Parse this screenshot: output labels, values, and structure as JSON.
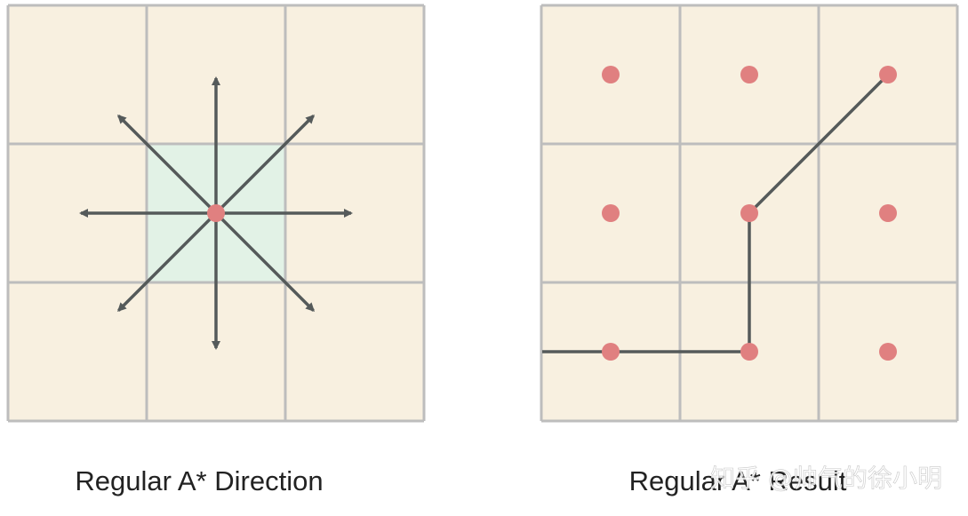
{
  "colors": {
    "cell_fill": "#f8f0e0",
    "center_cell_fill": "#e2f2e6",
    "grid_line": "#bdbdbd",
    "arrow": "#555a5a",
    "node": "#e08080",
    "path_line": "#555a5a",
    "caption_text": "#222222",
    "watermark_text": "#ffffff"
  },
  "left_diagram": {
    "caption": "Regular A* Direction",
    "rows": 3,
    "cols": 3,
    "start_cell": [
      1,
      1
    ],
    "directions": [
      "north",
      "north-east",
      "east",
      "south-east",
      "south",
      "south-west",
      "west",
      "north-west"
    ]
  },
  "right_diagram": {
    "caption": "Regular A* Result",
    "rows": 3,
    "cols": 3,
    "nodes": [
      [
        0,
        0
      ],
      [
        0,
        1
      ],
      [
        0,
        2
      ],
      [
        1,
        0
      ],
      [
        1,
        1
      ],
      [
        1,
        2
      ],
      [
        2,
        0
      ],
      [
        2,
        1
      ],
      [
        2,
        2
      ]
    ],
    "path_cells": [
      [
        0,
        2
      ],
      [
        1,
        1
      ],
      [
        2,
        1
      ],
      [
        2,
        0
      ]
    ],
    "path_continues_left": true
  },
  "watermark": {
    "text": "知乎 @帅气的徐小明"
  }
}
